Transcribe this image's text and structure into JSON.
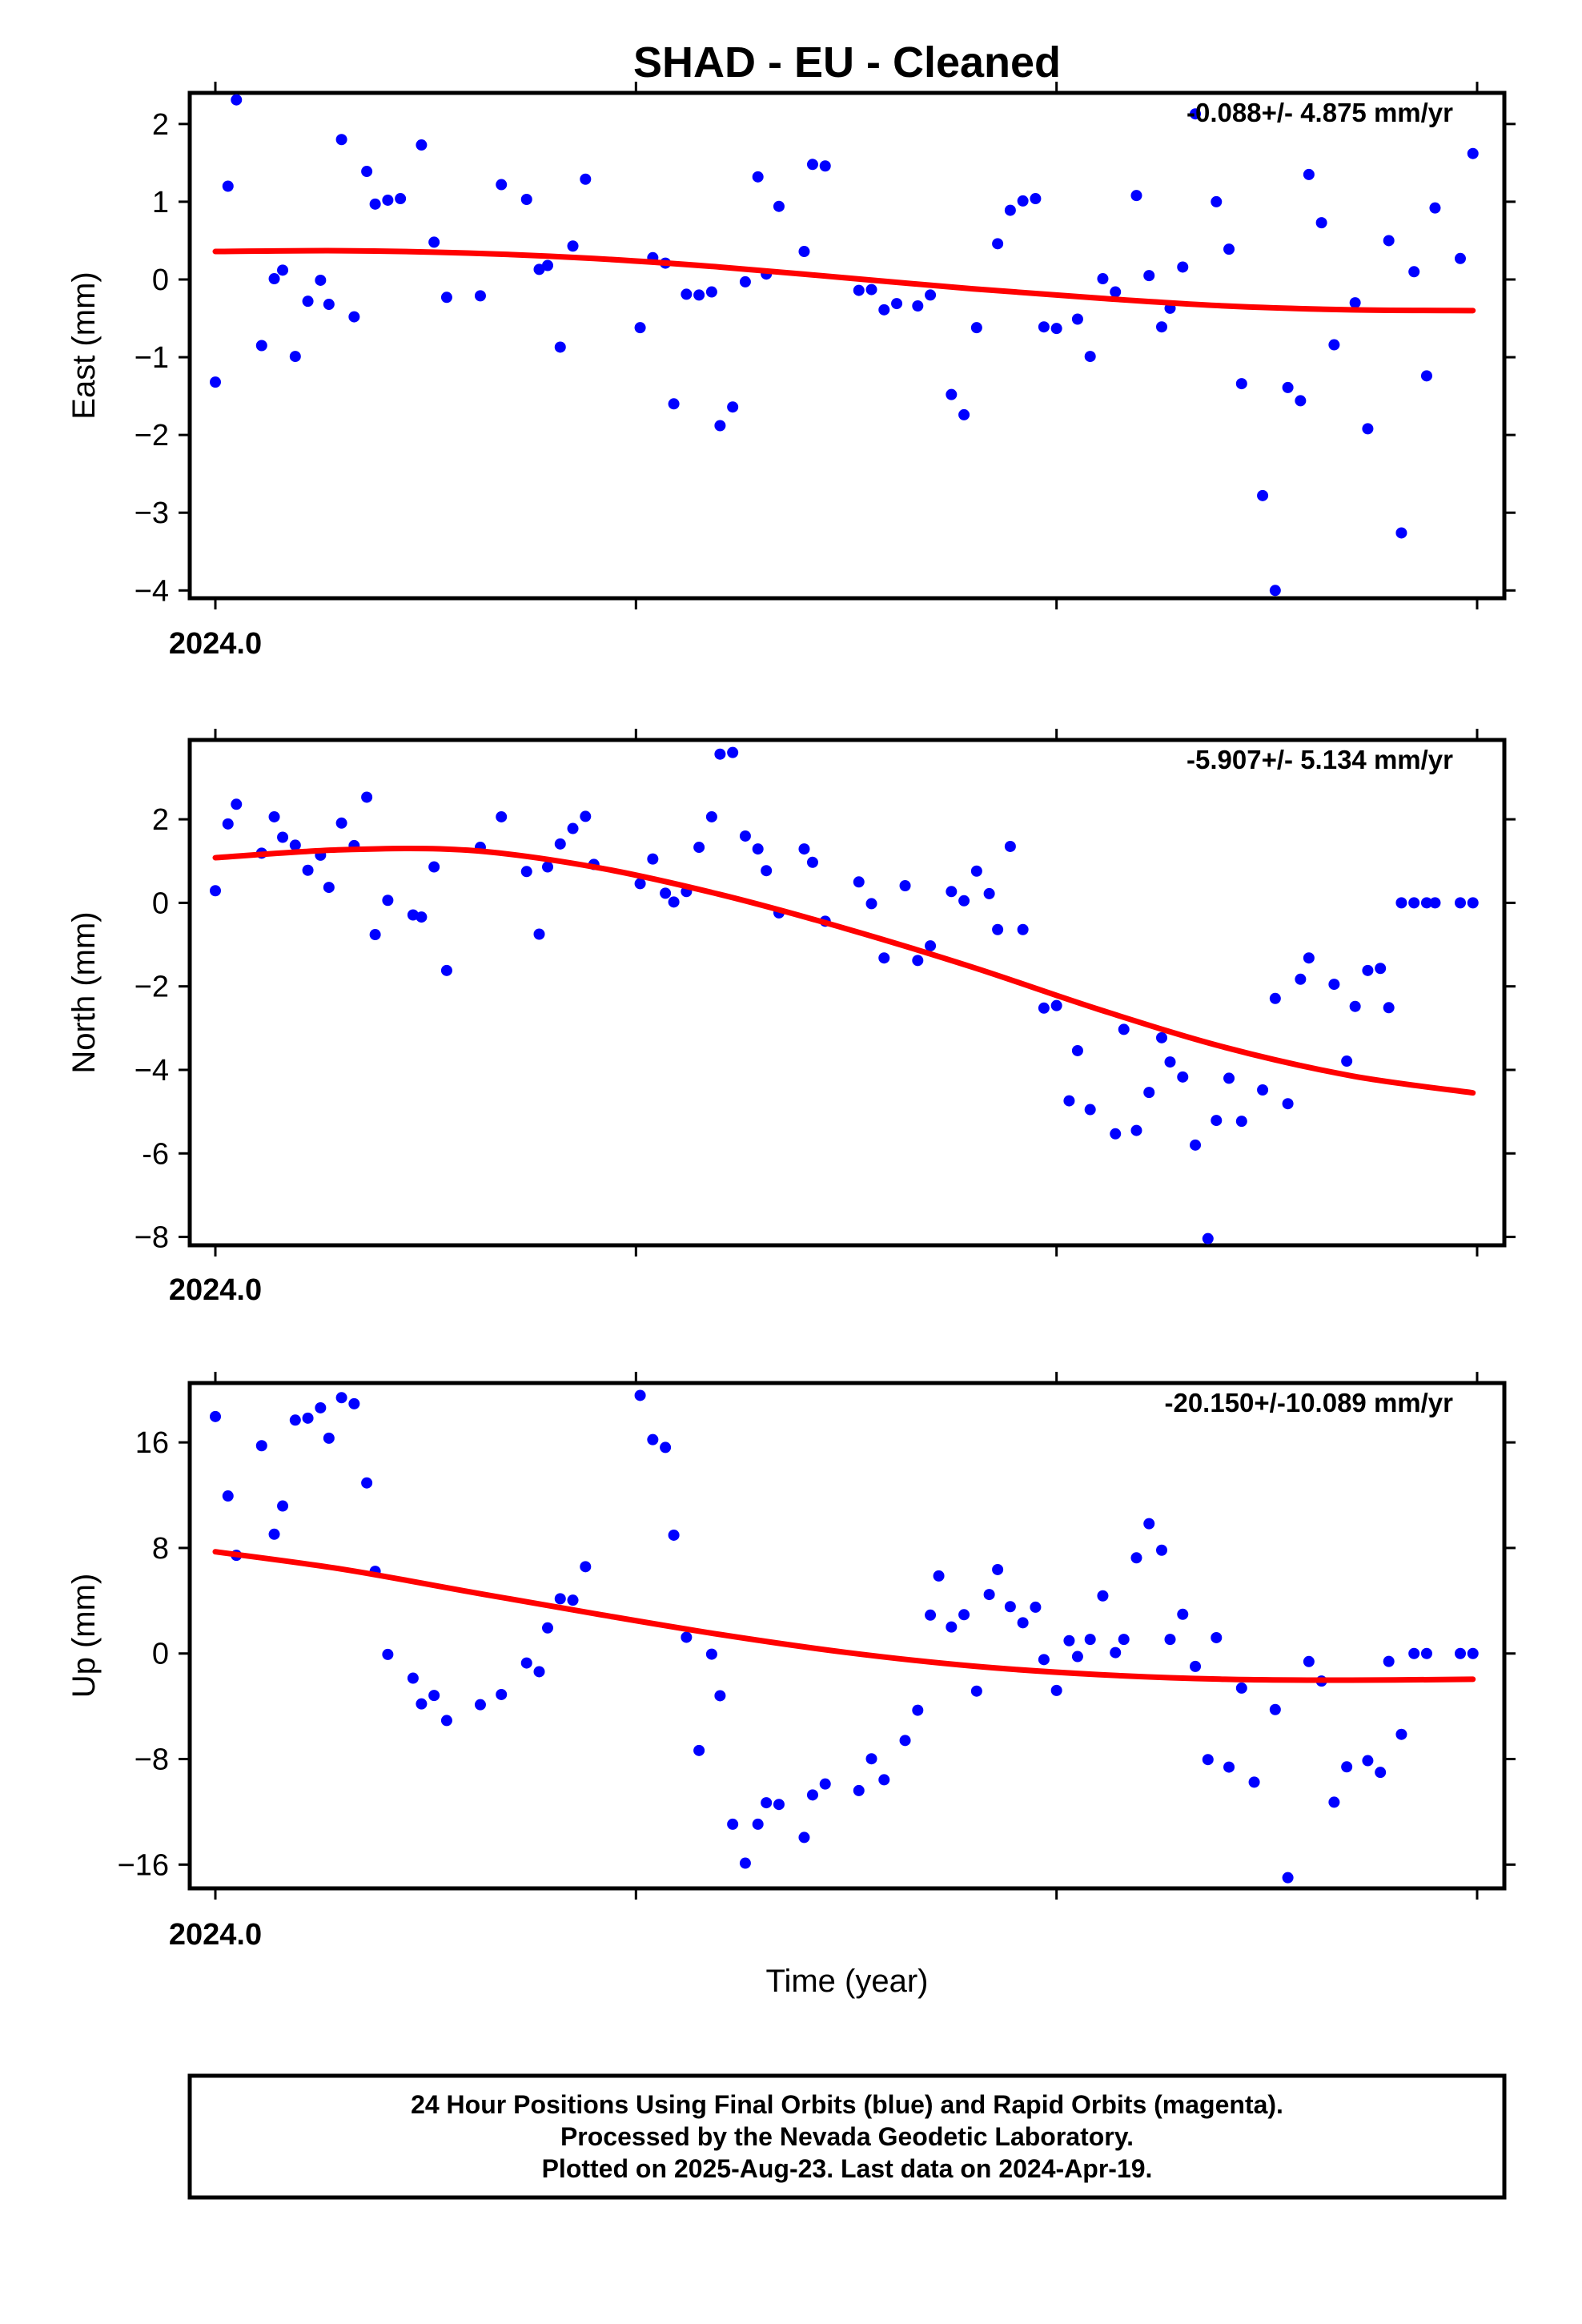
{
  "title": "SHAD  - EU - Cleaned",
  "xlabel": "Time (year)",
  "footer": {
    "line1": "24 Hour Positions Using Final Orbits (blue) and Rapid Orbits (magenta).",
    "line2": "Processed by the Nevada Geodetic Laboratory.",
    "line3": "Plotted on 2025-Aug-23. Last data on 2024-Apr-19."
  },
  "colors": {
    "points": "#0000ff",
    "fit": "#ff0000",
    "frame": "#000000"
  },
  "chart_data": [
    {
      "type": "scatter",
      "name": "East",
      "ylabel": "East (mm)",
      "rate": "-0.088+/- 4.875 mm/yr",
      "x_tick_label": "2024.0",
      "xlim": [
        2024.0,
        2024.3
      ],
      "ylim": [
        -4.1,
        2.4
      ],
      "yticks": [
        2,
        1,
        0,
        -1,
        -2,
        -3,
        -4
      ],
      "ytick_labels": [
        "2",
        "1",
        "0",
        "−1",
        "−2",
        "−3",
        "−4"
      ],
      "x": [
        2024.0,
        2024.003,
        2024.005,
        2024.011,
        2024.014,
        2024.016,
        2024.019,
        2024.022,
        2024.025,
        2024.027,
        2024.03,
        2024.033,
        2024.036,
        2024.038,
        2024.041,
        2024.044,
        2024.049,
        2024.052,
        2024.055,
        2024.063,
        2024.068,
        2024.074,
        2024.077,
        2024.079,
        2024.082,
        2024.085,
        2024.088,
        2024.101,
        2024.104,
        2024.107,
        2024.109,
        2024.112,
        2024.115,
        2024.118,
        2024.12,
        2024.123,
        2024.126,
        2024.129,
        2024.131,
        2024.134,
        2024.14,
        2024.142,
        2024.145,
        2024.153,
        2024.156,
        2024.159,
        2024.162,
        2024.167,
        2024.17,
        2024.175,
        2024.178,
        2024.181,
        2024.186,
        2024.189,
        2024.192,
        2024.195,
        2024.197,
        2024.2,
        2024.205,
        2024.208,
        2024.211,
        2024.214,
        2024.219,
        2024.222,
        2024.225,
        2024.227,
        2024.23,
        2024.233,
        2024.238,
        2024.241,
        2024.244,
        2024.249,
        2024.252,
        2024.255,
        2024.258,
        2024.26,
        2024.263,
        2024.266,
        2024.271,
        2024.274,
        2024.279,
        2024.282,
        2024.285,
        2024.288,
        2024.29,
        2024.296,
        2024.299
      ],
      "y": [
        -1.32,
        1.2,
        2.31,
        -0.85,
        0.01,
        0.12,
        -0.99,
        -0.28,
        -0.01,
        -0.32,
        1.8,
        -0.48,
        1.39,
        0.97,
        1.02,
        1.04,
        1.73,
        0.48,
        -0.23,
        -0.21,
        1.22,
        1.03,
        0.13,
        0.18,
        -0.87,
        0.43,
        1.29,
        -0.62,
        0.28,
        0.21,
        -1.6,
        -0.19,
        -0.2,
        -0.16,
        -1.88,
        -1.64,
        -0.03,
        1.32,
        0.07,
        0.94,
        0.36,
        1.48,
        1.46,
        -0.14,
        -0.13,
        -0.39,
        -0.31,
        -0.34,
        -0.2,
        -1.48,
        -1.74,
        -0.62,
        0.46,
        0.89,
        1.01,
        1.04,
        -0.61,
        -0.63,
        -0.51,
        -0.99,
        0.01,
        -0.16,
        1.08,
        0.05,
        -0.61,
        -0.37,
        0.16,
        2.13,
        1.0,
        0.39,
        -1.34,
        -2.78,
        -4.0,
        -1.39,
        -1.56,
        1.35,
        0.73,
        -0.84,
        -0.3,
        -1.92,
        0.5,
        -3.26,
        0.1,
        -1.24,
        0.92,
        0.27,
        1.62
      ],
      "fit": {
        "x": [
          2024.0,
          2024.03,
          2024.06,
          2024.09,
          2024.12,
          2024.15,
          2024.18,
          2024.21,
          2024.24,
          2024.27,
          2024.299
        ],
        "y": [
          0.36,
          0.37,
          0.34,
          0.27,
          0.16,
          0.02,
          -0.12,
          -0.24,
          -0.34,
          -0.39,
          -0.4
        ]
      }
    },
    {
      "type": "scatter",
      "name": "North",
      "ylabel": "North (mm)",
      "rate": "-5.907+/- 5.134 mm/yr",
      "x_tick_label": "2024.0",
      "xlim": [
        2024.0,
        2024.3
      ],
      "ylim": [
        -8.2,
        3.9
      ],
      "yticks": [
        2,
        0,
        -2,
        -4,
        -6,
        -8
      ],
      "ytick_labels": [
        "2",
        "0",
        "−2",
        "−4",
        "-6",
        "−8"
      ],
      "x": [
        2024.0,
        2024.003,
        2024.005,
        2024.011,
        2024.014,
        2024.016,
        2024.019,
        2024.022,
        2024.025,
        2024.027,
        2024.03,
        2024.033,
        2024.036,
        2024.038,
        2024.041,
        2024.047,
        2024.049,
        2024.052,
        2024.055,
        2024.063,
        2024.068,
        2024.074,
        2024.077,
        2024.079,
        2024.082,
        2024.085,
        2024.088,
        2024.09,
        2024.101,
        2024.104,
        2024.107,
        2024.109,
        2024.112,
        2024.115,
        2024.118,
        2024.12,
        2024.123,
        2024.126,
        2024.129,
        2024.131,
        2024.134,
        2024.14,
        2024.142,
        2024.145,
        2024.153,
        2024.156,
        2024.159,
        2024.164,
        2024.167,
        2024.17,
        2024.175,
        2024.178,
        2024.181,
        2024.184,
        2024.186,
        2024.189,
        2024.192,
        2024.197,
        2024.2,
        2024.203,
        2024.205,
        2024.208,
        2024.214,
        2024.216,
        2024.219,
        2024.222,
        2024.225,
        2024.227,
        2024.23,
        2024.233,
        2024.236,
        2024.238,
        2024.241,
        2024.244,
        2024.249,
        2024.252,
        2024.255,
        2024.258,
        2024.26,
        2024.266,
        2024.269,
        2024.271,
        2024.274,
        2024.277,
        2024.279,
        2024.282,
        2024.285,
        2024.288,
        2024.29,
        2024.296,
        2024.299
      ],
      "y": [
        0.29,
        1.89,
        2.36,
        1.19,
        2.06,
        1.57,
        1.38,
        0.78,
        1.14,
        0.37,
        1.91,
        1.37,
        2.53,
        -0.76,
        0.06,
        -0.29,
        -0.34,
        0.86,
        -1.62,
        1.33,
        2.06,
        0.75,
        -0.75,
        0.86,
        1.41,
        1.78,
        2.07,
        0.92,
        0.46,
        1.05,
        0.23,
        0.02,
        0.27,
        1.33,
        2.06,
        3.56,
        3.6,
        1.6,
        1.29,
        0.77,
        -0.24,
        1.29,
        0.97,
        -0.44,
        0.5,
        -0.02,
        -1.32,
        0.41,
        -1.38,
        -1.03,
        0.27,
        0.05,
        0.76,
        0.22,
        -0.64,
        1.35,
        -0.64,
        -2.52,
        -2.46,
        -4.74,
        -3.54,
        -4.95,
        -5.53,
        -3.03,
        -5.45,
        -4.54,
        -3.23,
        -3.81,
        -4.17,
        -5.8,
        -8.04,
        -5.21,
        -4.2,
        -5.23,
        -4.48,
        -2.29,
        -4.81,
        -1.83,
        -1.32,
        -1.95,
        -3.79,
        -2.48,
        -1.62,
        -1.57,
        -2.51,
        0.0,
        0.0,
        0.0,
        0.0,
        0.0,
        0.0
      ],
      "fit": {
        "x": [
          2024.0,
          2024.03,
          2024.06,
          2024.09,
          2024.12,
          2024.15,
          2024.18,
          2024.21,
          2024.24,
          2024.27,
          2024.299
        ],
        "y": [
          1.08,
          1.27,
          1.26,
          0.86,
          0.2,
          -0.62,
          -1.54,
          -2.55,
          -3.46,
          -4.14,
          -4.55
        ]
      }
    },
    {
      "type": "scatter",
      "name": "Up",
      "ylabel": "Up (mm)",
      "rate": "-20.150+/-10.089 mm/yr",
      "x_tick_label": "2024.0",
      "xlim": [
        2024.0,
        2024.3
      ],
      "ylim": [
        -17.8,
        20.5
      ],
      "yticks": [
        16,
        8,
        0,
        -8,
        -16
      ],
      "ytick_labels": [
        "16",
        "8",
        "0",
        "−8",
        "−16"
      ],
      "x": [
        2024.0,
        2024.003,
        2024.005,
        2024.011,
        2024.014,
        2024.016,
        2024.019,
        2024.022,
        2024.025,
        2024.027,
        2024.03,
        2024.033,
        2024.036,
        2024.038,
        2024.041,
        2024.047,
        2024.049,
        2024.052,
        2024.055,
        2024.063,
        2024.068,
        2024.074,
        2024.077,
        2024.079,
        2024.082,
        2024.085,
        2024.088,
        2024.101,
        2024.104,
        2024.107,
        2024.109,
        2024.112,
        2024.115,
        2024.118,
        2024.12,
        2024.123,
        2024.126,
        2024.129,
        2024.131,
        2024.134,
        2024.14,
        2024.142,
        2024.145,
        2024.153,
        2024.156,
        2024.159,
        2024.164,
        2024.167,
        2024.17,
        2024.172,
        2024.175,
        2024.178,
        2024.181,
        2024.184,
        2024.186,
        2024.189,
        2024.192,
        2024.195,
        2024.197,
        2024.2,
        2024.203,
        2024.205,
        2024.208,
        2024.211,
        2024.214,
        2024.216,
        2024.219,
        2024.222,
        2024.225,
        2024.227,
        2024.23,
        2024.233,
        2024.236,
        2024.238,
        2024.241,
        2024.244,
        2024.247,
        2024.252,
        2024.255,
        2024.26,
        2024.263,
        2024.266,
        2024.269,
        2024.274,
        2024.277,
        2024.279,
        2024.282,
        2024.285,
        2024.288,
        2024.296,
        2024.299
      ],
      "y": [
        17.96,
        11.94,
        7.44,
        15.75,
        9.04,
        11.18,
        17.69,
        17.84,
        18.62,
        16.32,
        19.39,
        18.93,
        12.93,
        6.23,
        -0.07,
        -1.87,
        -3.82,
        -3.18,
        -5.08,
        -3.88,
        -3.11,
        -0.72,
        -1.38,
        1.94,
        4.15,
        4.04,
        6.58,
        19.56,
        16.21,
        15.62,
        8.97,
        1.23,
        -7.35,
        -0.05,
        -3.2,
        -12.94,
        -15.89,
        -12.94,
        -11.31,
        -11.44,
        -13.94,
        -10.72,
        -9.89,
        -10.39,
        -7.98,
        -9.57,
        -6.59,
        -4.3,
        2.91,
        5.88,
        2.01,
        2.94,
        -2.85,
        4.47,
        6.36,
        3.55,
        2.33,
        3.51,
        -0.46,
        -2.8,
        0.97,
        -0.23,
        1.07,
        4.37,
        0.07,
        1.07,
        7.25,
        9.84,
        7.83,
        1.07,
        2.97,
        -0.98,
        -8.04,
        1.2,
        -8.61,
        -2.62,
        -9.75,
        -4.25,
        -16.99,
        -0.61,
        -2.09,
        -11.27,
        -8.59,
        -8.12,
        -9.01,
        -0.6,
        -6.13,
        0.0,
        0.0,
        0.0,
        0.0
      ],
      "fit": {
        "x": [
          2024.0,
          2024.03,
          2024.06,
          2024.09,
          2024.12,
          2024.15,
          2024.18,
          2024.21,
          2024.24,
          2024.27,
          2024.299
        ],
        "y": [
          7.71,
          6.4,
          4.7,
          3.03,
          1.44,
          0.08,
          -0.95,
          -1.6,
          -1.95,
          -2.02,
          -1.95
        ]
      }
    }
  ]
}
